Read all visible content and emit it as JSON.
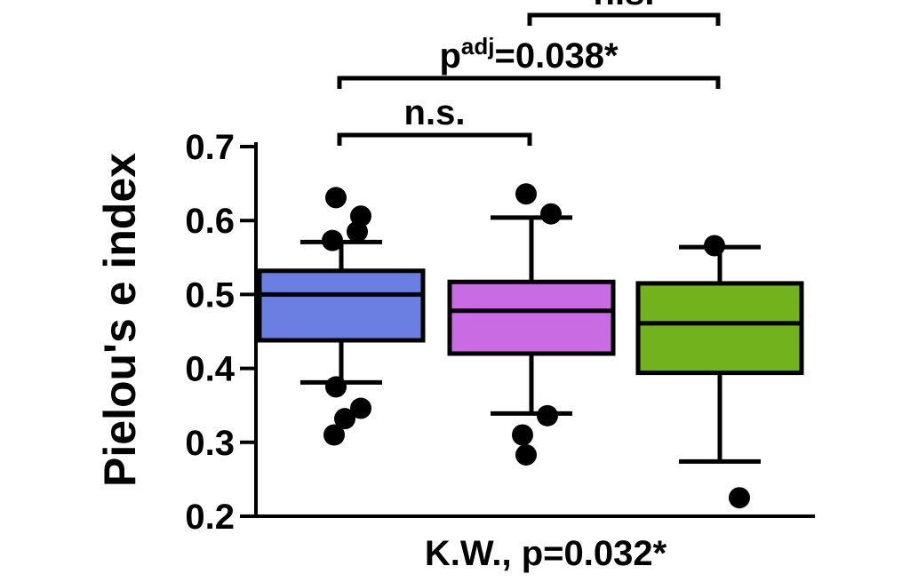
{
  "chart_data": {
    "type": "boxplot",
    "ylabel": "Pielou's e index",
    "ylim": [
      0.2,
      0.7
    ],
    "yticks": [
      0.2,
      0.3,
      0.4,
      0.5,
      0.6,
      0.7
    ],
    "ytick_labels": [
      "0.2",
      "0.3",
      "0.4",
      "0.5",
      "0.6",
      "0.7"
    ],
    "grid": false,
    "groups": [
      {
        "color": "#6b7fe3",
        "q1": 0.438,
        "median": 0.5,
        "q3": 0.532,
        "whisker_low": 0.381,
        "whisker_high": 0.571,
        "outliers": [
          0.631,
          0.606,
          0.585,
          0.573,
          0.375,
          0.346,
          0.332,
          0.31
        ]
      },
      {
        "color": "#c96be3",
        "q1": 0.42,
        "median": 0.478,
        "q3": 0.517,
        "whisker_low": 0.339,
        "whisker_high": 0.604,
        "outliers": [
          0.636,
          0.609,
          0.336,
          0.31,
          0.283
        ]
      },
      {
        "color": "#72b21c",
        "q1": 0.394,
        "median": 0.461,
        "q3": 0.515,
        "whisker_low": 0.274,
        "whisker_high": 0.564,
        "outliers": [
          0.566,
          0.225
        ]
      }
    ],
    "comparisons": [
      {
        "from": 1,
        "to": 2,
        "label": "n.s."
      },
      {
        "from": 0,
        "to": 2,
        "label": "p",
        "label_sup": "adj",
        "label_suffix": "=0.038*"
      },
      {
        "from": 0,
        "to": 1,
        "label": "n.s."
      }
    ],
    "footer": "K.W., p=0.032*"
  }
}
